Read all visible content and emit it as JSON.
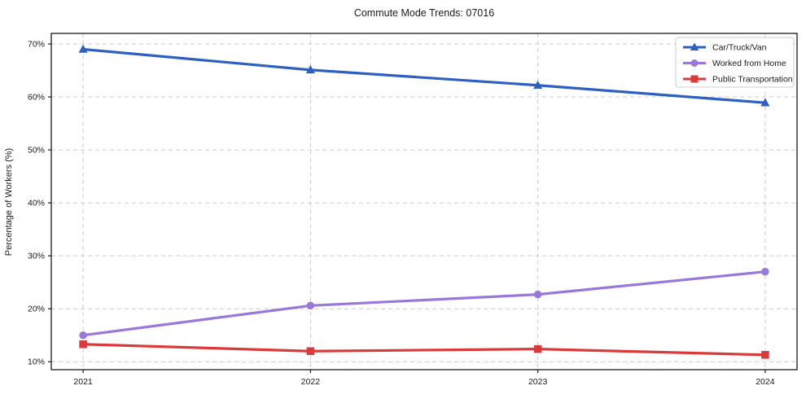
{
  "chart_data": {
    "type": "line",
    "title": "Commute Mode Trends: 07016",
    "xlabel": "",
    "ylabel": "Percentage of Workers (%)",
    "x": [
      2021,
      2022,
      2023,
      2024
    ],
    "x_tick_labels": [
      "2021",
      "2022",
      "2023",
      "2024"
    ],
    "y_ticks": [
      10,
      20,
      30,
      40,
      50,
      60,
      70
    ],
    "y_tick_labels": [
      "10%",
      "20%",
      "30%",
      "40%",
      "50%",
      "60%",
      "70%"
    ],
    "ylim": [
      8.5,
      72
    ],
    "xlim": [
      2020.86,
      2024.14
    ],
    "grid": "dashed",
    "legend_position": "top-right",
    "series": [
      {
        "name": "Car/Truck/Van",
        "color": "#2e5fc3",
        "marker": "triangle",
        "values": [
          69.0,
          65.1,
          62.2,
          58.9
        ]
      },
      {
        "name": "Worked from Home",
        "color": "#9a77dc",
        "marker": "circle",
        "values": [
          15.0,
          20.6,
          22.7,
          27.0
        ]
      },
      {
        "name": "Public Transportation",
        "color": "#da3a3a",
        "marker": "square",
        "values": [
          13.3,
          12.0,
          12.4,
          11.3
        ]
      }
    ],
    "colors": {
      "grid": "#cccccc",
      "spine": "#1a1a1a",
      "text": "#1a1a1a",
      "legend_border": "#cccccc",
      "legend_bg": "#ffffff"
    }
  }
}
